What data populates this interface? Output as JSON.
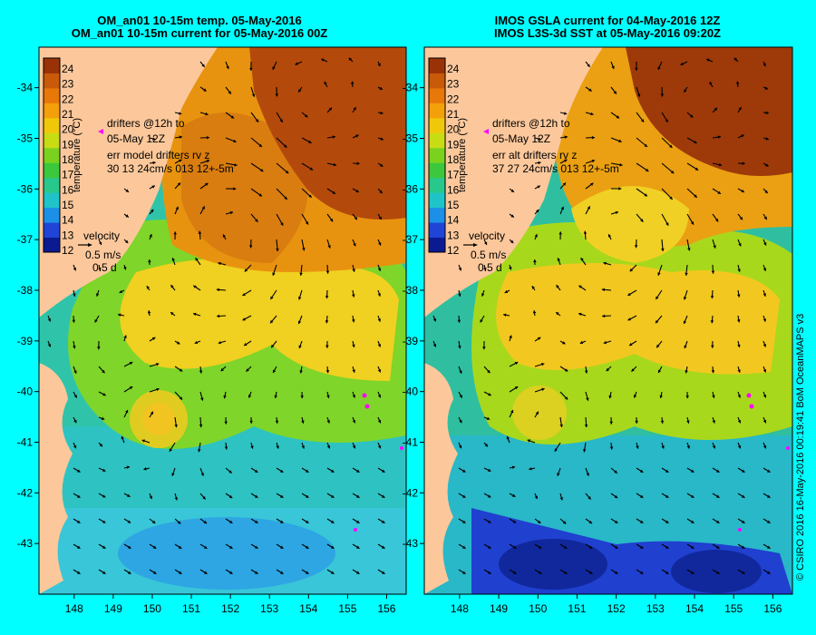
{
  "colors": {
    "background": "#00ffff",
    "land": "#fcc89b",
    "arrow": "#000000",
    "drifter": "#ff00ff",
    "colorbar": [
      "#0b1a90",
      "#1f44d6",
      "#1c8fe8",
      "#1fc4c8",
      "#28c88c",
      "#3cc83c",
      "#7ad21e",
      "#c8dc14",
      "#f0c80a",
      "#f4a00a",
      "#e8780a",
      "#c85a0a",
      "#9a3208"
    ]
  },
  "credit": "© CSIRO 2016   16-May-2016 00:19:41 BoM OceanMAPS v3",
  "panels": [
    {
      "title_line1": "OM_an01 10-15m temp. 05-May-2016",
      "title_line2": "OM_an01 10-15m current for 05-May-2016 00Z",
      "drifters_text1": "drifters @12h to",
      "drifters_text2": "05-May 12Z",
      "err_text1": "err model drifters rv z",
      "err_text2": "30 13 24cm/s 013 12+-5m"
    },
    {
      "title_line1": "IMOS GSLA current for 04-May-2016 12Z",
      "title_line2": "IMOS L3S-3d SST at 05-May-2016 09:20Z",
      "drifters_text1": "drifters @12h to",
      "drifters_text2": "05-May 12Z",
      "err_text1": "err alt drifters rv z",
      "err_text2": "37 27 24cm/s 013 12+-5m"
    }
  ],
  "colorbar": {
    "label": "temperature (°C)",
    "ticks": [
      "24",
      "23",
      "22",
      "21",
      "20",
      "19",
      "18",
      "17",
      "16",
      "15",
      "14",
      "13",
      "12"
    ]
  },
  "velocity_legend": {
    "title": "velocity",
    "speed": "0.5 m/s",
    "time": "0.5 d"
  },
  "axes": {
    "lat_ticks": [
      "-34",
      "-35",
      "-36",
      "-37",
      "-38",
      "-39",
      "-40",
      "-41",
      "-42",
      "-43"
    ],
    "lon_ticks": [
      "148",
      "149",
      "150",
      "151",
      "152",
      "153",
      "154",
      "155",
      "156"
    ],
    "lat_range": [
      -33.2,
      -44.0
    ],
    "lon_range": [
      147.1,
      156.5
    ]
  }
}
